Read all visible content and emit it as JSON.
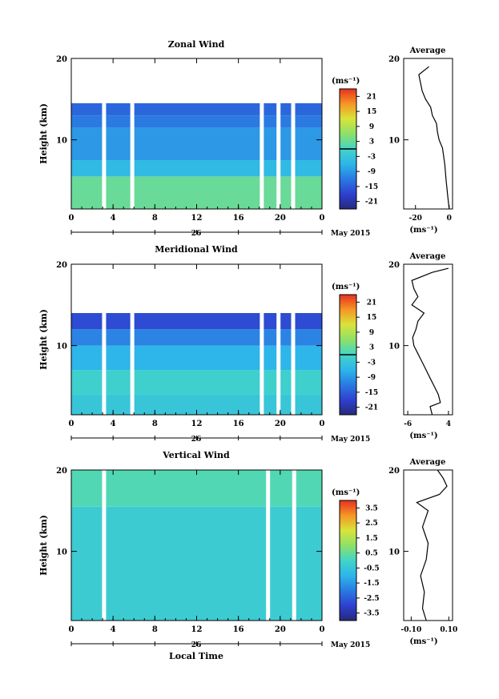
{
  "figure": {
    "xlabel": "Local Time",
    "date_label": "May 2015",
    "day_label": "26"
  },
  "chart_data": [
    {
      "type": "heatmap",
      "title": "Zonal Wind",
      "xlabel": "Local Time",
      "ylabel": "Height (km)",
      "x_ticks": [
        "0",
        "4",
        "8",
        "12",
        "16",
        "20",
        "0"
      ],
      "xlim": [
        0,
        24
      ],
      "y_ticks": [
        "10",
        "20"
      ],
      "ylim": [
        1.5,
        20
      ],
      "colorbar_unit": "(ms⁻¹)",
      "colorbar_ticks": [
        "21",
        "15",
        "9",
        "3",
        "-3",
        "-9",
        "-15",
        "-21"
      ],
      "colorbar_range": [
        -24,
        24
      ],
      "contour_level": 0,
      "fill_rows": [
        {
          "h0": 1.5,
          "h1": 5.5,
          "value": 3
        },
        {
          "h0": 5.5,
          "h1": 7.5,
          "value": -5
        },
        {
          "h0": 7.5,
          "h1": 11.5,
          "value": -9
        },
        {
          "h0": 11.5,
          "h1": 13,
          "value": -12
        },
        {
          "h0": 13,
          "h1": 14.5,
          "value": -14
        }
      ],
      "gaps_hours": [
        3.1,
        5.8,
        18.2,
        19.8,
        21.2
      ],
      "average_profile": {
        "title": "Average",
        "xlabel": "(ms⁻¹)",
        "x_ticks": [
          "-20",
          "0"
        ],
        "xlim": [
          -27,
          2
        ],
        "height": [
          1.5,
          3,
          5,
          7,
          9,
          10,
          11,
          12,
          13,
          14,
          15,
          16,
          17,
          18,
          19
        ],
        "value": [
          0,
          -0.8,
          -1.8,
          -2.6,
          -4,
          -6,
          -7,
          -7.5,
          -10,
          -11,
          -14,
          -16,
          -17,
          -18,
          -12
        ]
      }
    },
    {
      "type": "heatmap",
      "title": "Meridional Wind",
      "xlabel": "Local Time",
      "ylabel": "Height (km)",
      "x_ticks": [
        "0",
        "4",
        "8",
        "12",
        "16",
        "20",
        "0"
      ],
      "xlim": [
        0,
        24
      ],
      "y_ticks": [
        "10",
        "20"
      ],
      "ylim": [
        1.5,
        20
      ],
      "colorbar_unit": "(ms⁻¹)",
      "colorbar_ticks": [
        "21",
        "15",
        "9",
        "3",
        "-3",
        "-9",
        "-15",
        "-21"
      ],
      "colorbar_range": [
        -24,
        24
      ],
      "contour_level": 0,
      "fill_rows": [
        {
          "h0": 1.5,
          "h1": 4,
          "value": -3
        },
        {
          "h0": 4,
          "h1": 7,
          "value": -1
        },
        {
          "h0": 7,
          "h1": 10,
          "value": -6
        },
        {
          "h0": 10,
          "h1": 12,
          "value": -11
        },
        {
          "h0": 12,
          "h1": 14,
          "value": -17
        }
      ],
      "gaps_hours": [
        3.1,
        5.8,
        18.2,
        19.8,
        21.2
      ],
      "average_profile": {
        "title": "Average",
        "xlabel": "(ms⁻¹)",
        "x_ticks": [
          "-6",
          "4"
        ],
        "xlim": [
          -7,
          5
        ],
        "height": [
          1.5,
          2.5,
          3,
          4,
          5,
          6,
          7,
          8,
          9,
          10,
          11,
          12,
          13,
          14,
          15,
          16,
          17,
          18,
          19,
          19.5
        ],
        "value": [
          0,
          -0.5,
          2,
          1.5,
          0.5,
          -0.5,
          -1.5,
          -2.5,
          -3.5,
          -4.5,
          -4.8,
          -4,
          -3.5,
          -2,
          -5,
          -3.5,
          -4.5,
          -5,
          0,
          4
        ]
      }
    },
    {
      "type": "heatmap",
      "title": "Vertical Wind",
      "xlabel": "Local Time",
      "ylabel": "Height (km)",
      "x_ticks": [
        "0",
        "4",
        "8",
        "12",
        "16",
        "20",
        "0"
      ],
      "xlim": [
        0,
        24
      ],
      "y_ticks": [
        "10",
        "20"
      ],
      "ylim": [
        1.5,
        20
      ],
      "colorbar_unit": "(ms⁻¹)",
      "colorbar_ticks": [
        "3.5",
        "2.5",
        "1.5",
        "0.5",
        "-0.5",
        "-1.5",
        "-2.5",
        "-3.5"
      ],
      "colorbar_range": [
        -4,
        4
      ],
      "fill_rows": [
        {
          "h0": 1.5,
          "h1": 15.5,
          "value": -0.3
        },
        {
          "h0": 15.5,
          "h1": 20,
          "value": 0.2
        }
      ],
      "gaps_hours": [
        3.1,
        18.8,
        21.3
      ],
      "average_profile": {
        "title": "Average",
        "xlabel": "(ms⁻¹)",
        "x_ticks": [
          "-0.10",
          "0.10"
        ],
        "xlim": [
          -0.14,
          0.12
        ],
        "height": [
          1.5,
          3,
          5,
          7,
          9,
          11,
          13,
          15,
          16,
          17,
          18,
          19,
          20
        ],
        "value": [
          -0.02,
          -0.04,
          -0.03,
          -0.05,
          -0.02,
          -0.01,
          -0.04,
          -0.01,
          -0.07,
          0.05,
          0.09,
          0.07,
          0.04
        ]
      }
    }
  ]
}
